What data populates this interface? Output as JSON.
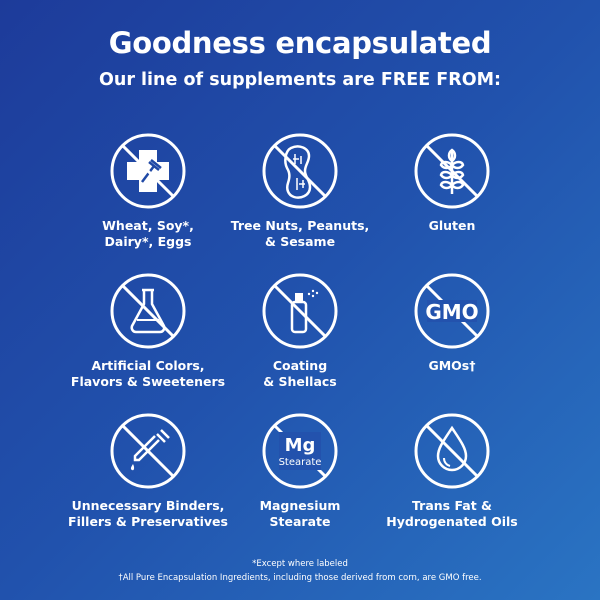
{
  "header": {
    "title": "Goodness encapsulated",
    "subtitle": "Our line of supplements are FREE FROM:"
  },
  "items": [
    {
      "icon": "allergen-cross-fork-icon",
      "label": "Wheat, Soy*,\nDairy*, Eggs"
    },
    {
      "icon": "peanut-icon",
      "label": "Tree Nuts, Peanuts,\n& Sesame"
    },
    {
      "icon": "wheat-icon",
      "label": "Gluten"
    },
    {
      "icon": "flask-icon",
      "label": "Artificial Colors,\nFlavors & Sweeteners"
    },
    {
      "icon": "spray-bottle-icon",
      "label": "Coating\n& Shellacs"
    },
    {
      "icon": "gmo-icon",
      "icon_text": "GMO",
      "label": "GMOs†"
    },
    {
      "icon": "dropper-icon",
      "label": "Unnecessary Binders,\nFillers & Preservatives"
    },
    {
      "icon": "magnesium-stearate-icon",
      "icon_text": "Mg",
      "icon_subtext": "Stearate",
      "label": "Magnesium\nStearate"
    },
    {
      "icon": "oil-drop-icon",
      "label": "Trans Fat &\nHydrogenated Oils"
    }
  ],
  "footnotes": {
    "line1": "*Except where labeled",
    "line2": "†All Pure Encapsulation Ingredients, including those derived from corn, are GMO free."
  },
  "colors": {
    "background_start": "#1d3b9a",
    "background_end": "#2a74c3",
    "foreground": "#ffffff"
  }
}
